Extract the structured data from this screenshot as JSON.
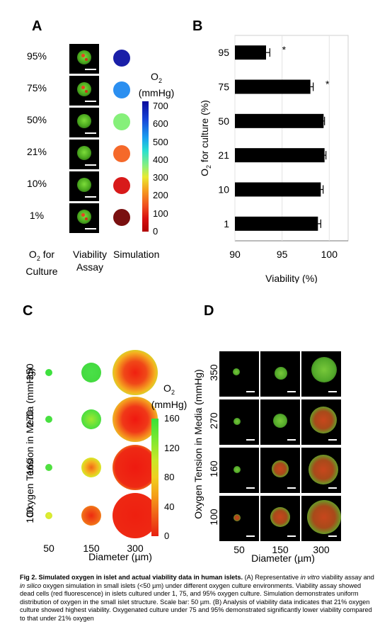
{
  "figure": {
    "panels": {
      "A": {
        "letter": "A",
        "rows": [
          "95%",
          "75%",
          "50%",
          "21%",
          "10%",
          "1%"
        ],
        "col_labels": {
          "o2_line1": "O",
          "o2_sub": "2",
          "o2_line1_rest": " for",
          "o2_line2": "Culture",
          "viability_line1": "Viability",
          "viability_line2": "Assay",
          "simulation": "Simulation"
        },
        "sim_colors": [
          "#1a1fa8",
          "#2b8ff0",
          "#86f07a",
          "#f5692a",
          "#d81a1a",
          "#7a1010"
        ],
        "colorbar": {
          "title_main": "O",
          "title_sub": "2",
          "unit": "(mmHg)",
          "ticks": [
            "700",
            "600",
            "500",
            "400",
            "300",
            "200",
            "100",
            "0"
          ]
        }
      },
      "B": {
        "letter": "B",
        "chart_data": {
          "type": "bar",
          "orientation": "horizontal",
          "categories": [
            "95",
            "75",
            "50",
            "21",
            "10",
            "1"
          ],
          "values": [
            93.3,
            98.0,
            99.4,
            99.5,
            99.1,
            98.8
          ],
          "errors": [
            0.4,
            0.3,
            0.1,
            0.15,
            0.25,
            0.3
          ],
          "significance": [
            "*",
            "*",
            "",
            "",
            "",
            ""
          ],
          "xlim": [
            90,
            102
          ],
          "xticks": [
            "90",
            "95",
            "100"
          ],
          "xlabel": "Viability (%)",
          "ylabel_main": "O",
          "ylabel_sub": "2",
          "ylabel_rest": " for culture (%)",
          "bar_color": "#000000"
        }
      },
      "C": {
        "letter": "C",
        "ylabel": "Oxygen Tension in Media (mmHg)",
        "rows": [
          "350",
          "270",
          "160",
          "100"
        ],
        "cols": [
          "50",
          "150",
          "300"
        ],
        "xlabel": "Diameter (µm)",
        "colorbar": {
          "title_main": "O",
          "title_sub": "2",
          "unit": "(mmHg)",
          "ticks": [
            "160",
            "120",
            "80",
            "40",
            "0"
          ]
        }
      },
      "D": {
        "letter": "D",
        "ylabel": "Oxygen Tension in Media (mmHg)",
        "rows": [
          "350",
          "270",
          "160",
          "100"
        ],
        "cols": [
          "50",
          "150",
          "300"
        ],
        "xlabel": "Diameter (µm)"
      }
    },
    "caption": {
      "label": "Fig 2. Simulated oxygen in islet and actual viability data in human islets.",
      "t1": " (A) Representative ",
      "i1": "in vitro",
      "t2": " viability assay and ",
      "i2": "in silico",
      "t3": " oxygen simulation in small islets (<50 µm) under different oxygen culture environments. Viability assay showed dead cells (red fluorescence) in islets cultured under 1, 75, and 95% oxygen culture. Simulation demonstrates uniform distribution of oxygen in the small islet structure. Scale bar: 50 µm. (B) Analysis of viability data indicates that 21% oxygen culture showed highest viability. Oxygenated culture under 75 and 95% demonstrated significantly lower viability compared to that under 21% oxygen"
    }
  }
}
